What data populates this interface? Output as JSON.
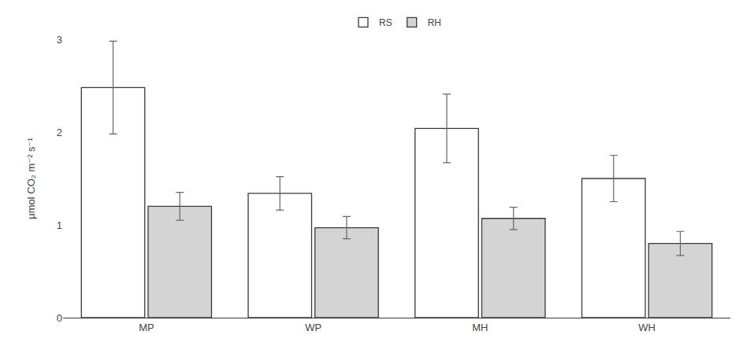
{
  "chart_data": {
    "type": "bar",
    "categories": [
      "MP",
      "WP",
      "MH",
      "WH"
    ],
    "series": [
      {
        "name": "RS",
        "color": "#ffffff",
        "values": [
          2.48,
          1.34,
          2.04,
          1.5
        ],
        "errors": [
          0.5,
          0.18,
          0.37,
          0.25
        ]
      },
      {
        "name": "RH",
        "color": "#d4d4d4",
        "values": [
          1.2,
          0.97,
          1.07,
          0.8
        ],
        "errors": [
          0.15,
          0.12,
          0.12,
          0.13
        ]
      }
    ],
    "ylabel": "μmol CO₂ m⁻² s⁻¹",
    "ylim": [
      0,
      3.0
    ],
    "yticks": [
      0,
      1,
      2,
      3
    ],
    "grid": false,
    "legend": "top"
  }
}
